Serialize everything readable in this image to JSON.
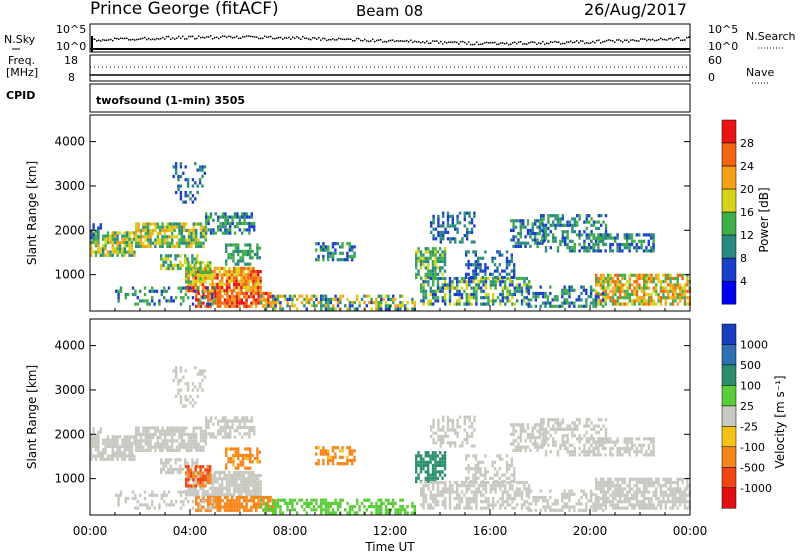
{
  "header": {
    "station": "Prince George (fitACF)",
    "beam": "Beam 08",
    "date": "26/Aug/2017"
  },
  "top_panels": {
    "nsky_label": "N.Sky",
    "nsky_ticks": [
      "10^5",
      "10^0"
    ],
    "nsearch_label": "N.Search",
    "nsearch_ticks": [
      "10^5",
      "10^0"
    ],
    "freq_label_line1": "Freq.",
    "freq_label_line2": "[MHz]",
    "freq_ticks": [
      "18",
      "8"
    ],
    "nave_label": "Nave",
    "nave_ticks": [
      "60",
      "0"
    ],
    "cpid_label": "CPID",
    "cpid_value": "twofsound (1-min) 3505"
  },
  "chart_data": [
    {
      "type": "heatmap",
      "name": "power",
      "ylabel": "Slant Range [km]",
      "yticks": [
        1000,
        2000,
        3000,
        4000
      ],
      "ylim": [
        180,
        4600
      ],
      "xlim_hours": [
        0,
        24
      ],
      "colorbar": {
        "label": "Power [dB]",
        "ticks": [
          "4",
          "8",
          "12",
          "16",
          "20",
          "24",
          "28"
        ],
        "bins": [
          {
            "min": 0,
            "max": 4,
            "color": "#0000ee"
          },
          {
            "min": 4,
            "max": 8,
            "color": "#1a3fc8"
          },
          {
            "min": 8,
            "max": 12,
            "color": "#2b8a7e"
          },
          {
            "min": 12,
            "max": 16,
            "color": "#3fae4a"
          },
          {
            "min": 16,
            "max": 20,
            "color": "#d9d21a"
          },
          {
            "min": 20,
            "max": 24,
            "color": "#f6a01a"
          },
          {
            "min": 24,
            "max": 28,
            "color": "#f46512"
          },
          {
            "min": 28,
            "max": 32,
            "color": "#e81414"
          }
        ]
      }
    },
    {
      "type": "heatmap",
      "name": "velocity",
      "ylabel": "Slant Range [km]",
      "yticks": [
        1000,
        2000,
        3000,
        4000
      ],
      "ylim": [
        180,
        4600
      ],
      "xlim_hours": [
        0,
        24
      ],
      "colorbar": {
        "label": "Velocity [m s⁻¹]",
        "ticks": [
          "1000",
          "500",
          "100",
          "25",
          "-25",
          "-100",
          "-500",
          "-1000"
        ],
        "bins": [
          {
            "min": 1000,
            "max": 2000,
            "color": "#1a3fbe"
          },
          {
            "min": 500,
            "max": 1000,
            "color": "#2f6fb4"
          },
          {
            "min": 100,
            "max": 500,
            "color": "#2c8e6e"
          },
          {
            "min": 25,
            "max": 100,
            "color": "#5bcc3a"
          },
          {
            "min": -25,
            "max": 25,
            "color": "#c8c8c0"
          },
          {
            "min": -100,
            "max": -25,
            "color": "#f5c21a"
          },
          {
            "min": -500,
            "max": -100,
            "color": "#f5861a"
          },
          {
            "min": -1000,
            "max": -500,
            "color": "#f04616"
          },
          {
            "min": -2000,
            "max": -1000,
            "color": "#e01010"
          }
        ]
      }
    }
  ],
  "x_axis": {
    "label": "Time UT",
    "ticks": [
      "00:00",
      "04:00",
      "08:00",
      "12:00",
      "16:00",
      "20:00",
      "00:00"
    ]
  }
}
